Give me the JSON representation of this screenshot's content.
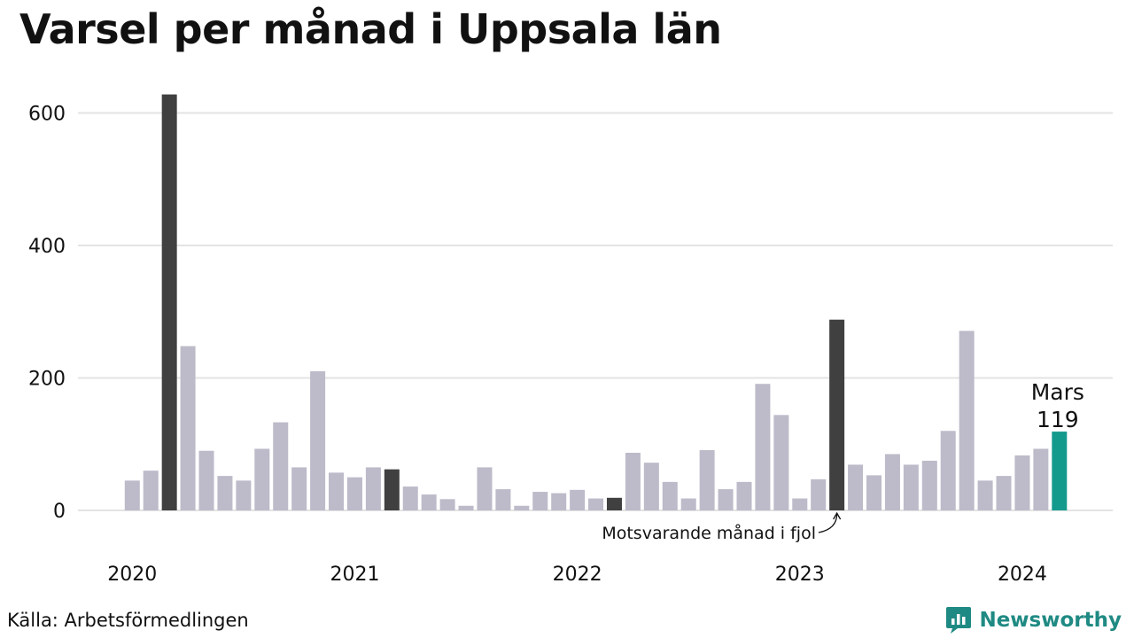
{
  "header": {
    "title": "Varsel per månad i Uppsala län"
  },
  "footer": {
    "source": "Källa: Arbetsförmedlingen",
    "brand": "Newsworthy"
  },
  "colors": {
    "default_bar": "#bdbac9",
    "comparison_bar": "#404040",
    "current_bar": "#149a8d",
    "gridline": "#e3e3e3",
    "brand": "#1f8a83"
  },
  "chart_data": {
    "type": "bar",
    "title": "Varsel per månad i Uppsala län",
    "xlabel": "",
    "ylabel": "",
    "ylim": [
      0,
      640
    ],
    "yticks": [
      0,
      200,
      400,
      600
    ],
    "year_labels": [
      "2020",
      "2021",
      "2022",
      "2023",
      "2024"
    ],
    "grid": true,
    "months": [
      "2020-01",
      "2020-02",
      "2020-03",
      "2020-04",
      "2020-05",
      "2020-06",
      "2020-07",
      "2020-08",
      "2020-09",
      "2020-10",
      "2020-11",
      "2020-12",
      "2021-01",
      "2021-02",
      "2021-03",
      "2021-04",
      "2021-05",
      "2021-06",
      "2021-07",
      "2021-08",
      "2021-09",
      "2021-10",
      "2021-11",
      "2021-12",
      "2022-01",
      "2022-02",
      "2022-03",
      "2022-04",
      "2022-05",
      "2022-06",
      "2022-07",
      "2022-08",
      "2022-09",
      "2022-10",
      "2022-11",
      "2022-12",
      "2023-01",
      "2023-02",
      "2023-03",
      "2023-04",
      "2023-05",
      "2023-06",
      "2023-07",
      "2023-08",
      "2023-09",
      "2023-10",
      "2023-11",
      "2023-12",
      "2024-01",
      "2024-02",
      "2024-03"
    ],
    "values": [
      45,
      60,
      628,
      248,
      90,
      52,
      45,
      93,
      133,
      65,
      210,
      57,
      50,
      65,
      62,
      36,
      24,
      17,
      7,
      65,
      32,
      7,
      28,
      26,
      31,
      18,
      19,
      87,
      72,
      43,
      18,
      91,
      32,
      43,
      191,
      144,
      18,
      47,
      288,
      69,
      53,
      85,
      69,
      75,
      120,
      271,
      45,
      52,
      83,
      93,
      119
    ],
    "highlight": {
      "comparison": [
        "2020-03",
        "2021-03",
        "2022-03",
        "2023-03"
      ],
      "current": "2024-03"
    },
    "annotations": {
      "current_label": "Mars",
      "current_value": "119",
      "comparison_note": "Motsvarande månad i fjol"
    }
  }
}
